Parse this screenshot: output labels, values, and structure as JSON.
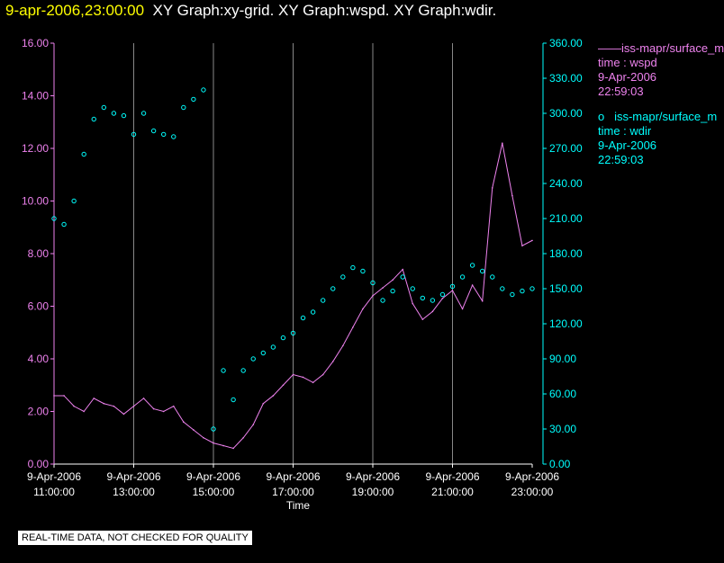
{
  "title": {
    "timestamp": "9-apr-2006,23:00:00",
    "graphs": "XY Graph:xy-grid.  XY Graph:wspd.  XY Graph:wdir."
  },
  "legend": {
    "wspd": {
      "marker": "——",
      "label": "iss-mapr/surface_m",
      "time_label": "time : wspd",
      "date": "9-Apr-2006",
      "time": "22:59:03",
      "color": "#ee82ee"
    },
    "wdir": {
      "marker": "o",
      "label": "iss-mapr/surface_m",
      "time_label": "time : wdir",
      "date": "9-Apr-2006",
      "time": "22:59:03",
      "color": "#00ffff"
    }
  },
  "notice": "REAL-TIME DATA, NOT CHECKED FOR QUALITY",
  "chart_data": {
    "type": "line",
    "xlabel": "Time",
    "x_range_hours": [
      11,
      23
    ],
    "x_ticks": [
      {
        "date": "9-Apr-2006",
        "time": "11:00:00",
        "hour": 11
      },
      {
        "date": "9-Apr-2006",
        "time": "13:00:00",
        "hour": 13
      },
      {
        "date": "9-Apr-2006",
        "time": "15:00:00",
        "hour": 15
      },
      {
        "date": "9-Apr-2006",
        "time": "17:00:00",
        "hour": 17
      },
      {
        "date": "9-Apr-2006",
        "time": "19:00:00",
        "hour": 19
      },
      {
        "date": "9-Apr-2006",
        "time": "21:00:00",
        "hour": 21
      },
      {
        "date": "9-Apr-2006",
        "time": "23:00:00",
        "hour": 23
      }
    ],
    "y_left": {
      "range": [
        0,
        16
      ],
      "ticks": [
        "0.00",
        "2.00",
        "4.00",
        "6.00",
        "8.00",
        "10.00",
        "12.00",
        "14.00",
        "16.00"
      ],
      "color": "#ee82ee"
    },
    "y_right": {
      "range": [
        0,
        360
      ],
      "ticks": [
        "0.00",
        "30.00",
        "60.00",
        "90.00",
        "120.00",
        "150.00",
        "180.00",
        "210.00",
        "240.00",
        "270.00",
        "300.00",
        "330.00",
        "360.00"
      ],
      "color": "#00ffff"
    },
    "series": [
      {
        "name": "wspd",
        "style": "line",
        "axis": "left",
        "color": "#ee82ee",
        "x": [
          11.0,
          11.25,
          11.5,
          11.75,
          12.0,
          12.25,
          12.5,
          12.75,
          13.0,
          13.25,
          13.5,
          13.75,
          14.0,
          14.25,
          14.5,
          14.75,
          15.0,
          15.25,
          15.5,
          15.75,
          16.0,
          16.25,
          16.5,
          16.75,
          17.0,
          17.25,
          17.5,
          17.75,
          18.0,
          18.25,
          18.5,
          18.75,
          19.0,
          19.25,
          19.5,
          19.75,
          20.0,
          20.25,
          20.5,
          20.75,
          21.0,
          21.25,
          21.5,
          21.75,
          22.0,
          22.25,
          22.5,
          22.75,
          23.0
        ],
        "values": [
          2.6,
          2.6,
          2.2,
          2.0,
          2.5,
          2.3,
          2.2,
          1.9,
          2.2,
          2.5,
          2.1,
          2.0,
          2.2,
          1.6,
          1.3,
          1.0,
          0.8,
          0.7,
          0.6,
          1.0,
          1.5,
          2.3,
          2.6,
          3.0,
          3.4,
          3.3,
          3.1,
          3.4,
          3.9,
          4.5,
          5.2,
          5.9,
          6.4,
          6.7,
          7.0,
          7.4,
          6.1,
          5.5,
          5.8,
          6.3,
          6.6,
          5.9,
          6.8,
          6.2,
          10.5,
          12.2,
          10.2,
          8.3,
          8.5
        ]
      },
      {
        "name": "wdir",
        "style": "scatter",
        "axis": "right",
        "color": "#00ffff",
        "x": [
          11.0,
          11.25,
          11.5,
          11.75,
          12.0,
          12.25,
          12.5,
          12.75,
          13.0,
          13.25,
          13.5,
          13.75,
          14.0,
          14.25,
          14.5,
          14.75,
          15.0,
          15.25,
          15.5,
          15.75,
          16.0,
          16.25,
          16.5,
          16.75,
          17.0,
          17.25,
          17.5,
          17.75,
          18.0,
          18.25,
          18.5,
          18.75,
          19.0,
          19.25,
          19.5,
          19.75,
          20.0,
          20.25,
          20.5,
          20.75,
          21.0,
          21.25,
          21.5,
          21.75,
          22.0,
          22.25,
          22.5,
          22.75,
          23.0
        ],
        "values": [
          210,
          205,
          225,
          265,
          295,
          305,
          300,
          298,
          282,
          300,
          285,
          282,
          280,
          305,
          312,
          320,
          30,
          80,
          55,
          80,
          90,
          95,
          100,
          108,
          112,
          125,
          130,
          140,
          150,
          160,
          168,
          165,
          155,
          140,
          148,
          160,
          150,
          142,
          140,
          145,
          152,
          160,
          170,
          165,
          160,
          150,
          145,
          148,
          150
        ]
      }
    ]
  }
}
